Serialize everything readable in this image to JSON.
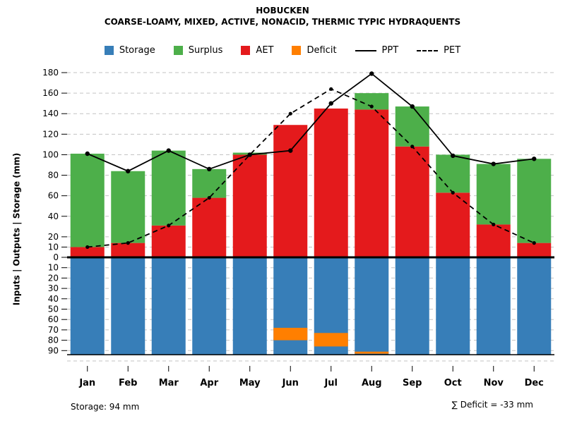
{
  "chart_data": {
    "type": "bar",
    "title": "HOBUCKEN",
    "subtitle": "COARSE-LOAMY, MIXED, ACTIVE, NONACID, THERMIC TYPIC HYDRAQUENTS",
    "ylabel": "Inputs | Outputs | Storage   (mm)",
    "categories": [
      "Jan",
      "Feb",
      "Mar",
      "Apr",
      "May",
      "Jun",
      "Jul",
      "Aug",
      "Sep",
      "Oct",
      "Nov",
      "Dec"
    ],
    "series": [
      {
        "name": "AET",
        "color": "#E41A1C",
        "values": [
          10,
          14,
          31,
          58,
          100,
          129,
          145,
          144,
          108,
          63,
          32,
          14
        ]
      },
      {
        "name": "Surplus",
        "color": "#4DAF4A",
        "values": [
          91,
          70,
          73,
          28,
          2,
          0,
          0,
          16,
          39,
          37,
          59,
          82
        ]
      },
      {
        "name": "Storage",
        "color": "#377EB8",
        "values": [
          94,
          94,
          94,
          94,
          94,
          94,
          94,
          94,
          94,
          94,
          94,
          94
        ]
      },
      {
        "name": "Deficit",
        "color": "#FF7F00",
        "values": [
          0,
          0,
          0,
          0,
          0,
          11,
          19,
          3,
          0,
          0,
          0,
          0
        ]
      }
    ],
    "lines": [
      {
        "name": "PPT",
        "style": "solid",
        "values": [
          101,
          84,
          104,
          86,
          100,
          104,
          150,
          179,
          147,
          99,
          91,
          96
        ]
      },
      {
        "name": "PET",
        "style": "dashed",
        "values": [
          10,
          14,
          31,
          58,
          100,
          140,
          164,
          147,
          108,
          63,
          32,
          14
        ]
      }
    ],
    "upper_axis": {
      "ticks": [
        180,
        160,
        140,
        120,
        100,
        80,
        60,
        40,
        20,
        10,
        0
      ],
      "max": 180
    },
    "lower_axis": {
      "ticks": [
        10,
        20,
        30,
        40,
        50,
        60,
        70,
        80,
        90
      ],
      "max": 100
    },
    "deficit_bars": [
      {
        "month": "Jun",
        "from_mm": 68,
        "to_mm": 80
      },
      {
        "month": "Jul",
        "from_mm": 73,
        "to_mm": 86
      },
      {
        "month": "Aug",
        "from_mm": 91,
        "to_mm": 93
      }
    ],
    "legend": [
      {
        "label": "Storage",
        "swatch": "square",
        "color": "#377EB8"
      },
      {
        "label": "Surplus",
        "swatch": "square",
        "color": "#4DAF4A"
      },
      {
        "label": "AET",
        "swatch": "square",
        "color": "#E41A1C"
      },
      {
        "label": "Deficit",
        "swatch": "square",
        "color": "#FF7F00"
      },
      {
        "label": "PPT",
        "swatch": "solid-line",
        "color": "#000000"
      },
      {
        "label": "PET",
        "swatch": "dashed-line",
        "color": "#000000"
      }
    ],
    "annotations": {
      "storage_note": "Storage: 94 mm",
      "deficit_note": "∑ Deficit = -33 mm"
    }
  }
}
